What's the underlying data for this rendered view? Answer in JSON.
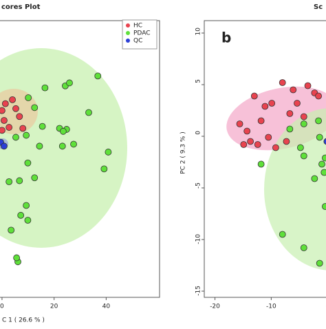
{
  "chart_data": [
    {
      "type": "scatter",
      "title": "cores Plot",
      "x_label": "C 1 ( 26.6 % )",
      "xlim": [
        -1.3,
        60.5
      ],
      "xticks": [
        0,
        20,
        40
      ],
      "ylim": [
        -16,
        12
      ],
      "series": [
        {
          "name": "HC",
          "color": "#e8434f",
          "x": [
            4.0,
            1.3,
            0,
            5.3,
            6.7,
            2.7,
            0.8,
            8.0,
            0
          ],
          "values": [
            4.0,
            3.6,
            2.9,
            3.1,
            2.3,
            1.2,
            1.9,
            1.1,
            0.9
          ]
        },
        {
          "name": "PDAC",
          "color": "#5fe03a",
          "x": [
            36.8,
            24.3,
            25.9,
            16.5,
            10.1,
            12.5,
            33.3,
            15.5,
            22.1,
            24.8,
            23.5,
            9.3,
            5.3,
            14.4,
            27.5,
            23.2,
            40.8,
            39.2,
            9.9,
            12.5,
            2.7,
            6.7,
            9.3,
            9.9,
            7.2,
            3.5,
            6.1,
            5.6
          ],
          "values": [
            6.4,
            5.4,
            5.7,
            5.2,
            4.2,
            3.2,
            2.7,
            1.3,
            1.1,
            1.0,
            0.8,
            0.4,
            0.2,
            -0.7,
            -0.5,
            -0.7,
            -1.3,
            -3.0,
            -2.4,
            -3.9,
            -4.3,
            -4.2,
            -6.7,
            -8.2,
            -7.7,
            -9.2,
            -12.4,
            -12.0
          ]
        },
        {
          "name": "QC",
          "color": "#2b3fd6",
          "x": [
            -0.5,
            0.8
          ],
          "values": [
            -0.3,
            -0.7
          ]
        }
      ]
    },
    {
      "type": "scatter",
      "title": "Sc",
      "panel_label": "b",
      "y_label": "PC 2 ( 9.3 % )",
      "xlim": [
        -21.9,
        0.1
      ],
      "xticks": [
        -20,
        -10,
        0
      ],
      "ylim": [
        -15.6,
        11.2
      ],
      "yticks": [
        10,
        5,
        0,
        -5,
        -10,
        -15
      ],
      "series": [
        {
          "color": "#e8434f",
          "x": [
            -13.0,
            -11.1,
            -9.9,
            -8.0,
            -6.1,
            -5.4,
            -3.5,
            -2.3,
            -15.6,
            -14.3,
            -13.7,
            -12.4,
            -10.5,
            -9.2,
            -7.3,
            -14.9,
            -1.6,
            -4.2,
            -6.7,
            -11.8
          ],
          "values": [
            3.9,
            2.9,
            3.2,
            5.2,
            4.5,
            3.2,
            4.9,
            4.2,
            1.2,
            0.5,
            -0.5,
            -0.8,
            -0.1,
            -1.1,
            -0.5,
            -0.8,
            3.9,
            1.9,
            2.2,
            1.5
          ]
        },
        {
          "color": "#5fe03a",
          "x": [
            -6.7,
            -4.2,
            -1.6,
            -4.8,
            -4.2,
            -11.8,
            -0.4,
            -1.0,
            -8.0,
            -4.2,
            -1.4,
            -0.4,
            -0.6,
            -2.3,
            -1.4
          ],
          "values": [
            0.7,
            1.2,
            1.5,
            -1.1,
            -1.9,
            -2.7,
            -2.1,
            -2.7,
            -9.5,
            -10.8,
            -12.3,
            -6.8,
            -3.5,
            -4.1,
            -0.1
          ]
        },
        {
          "color": "#2b3fd6",
          "x": [
            -0.1
          ],
          "values": [
            -0.5
          ]
        }
      ]
    }
  ]
}
